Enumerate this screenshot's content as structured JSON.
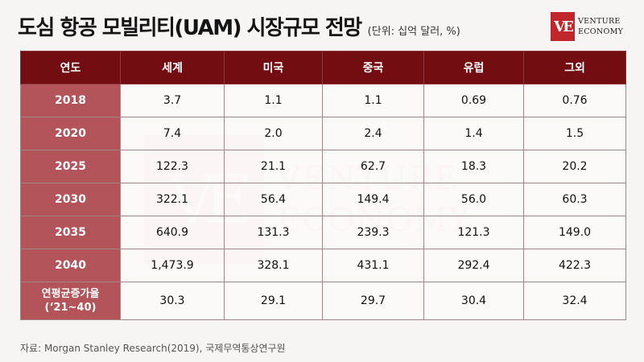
{
  "header": {
    "title": "도심 항공 모빌리티(UAM) 시장규모 전망",
    "unit": "(단위: 십억 달러, %)"
  },
  "logo": {
    "mark": "VE",
    "line1": "VENTURE",
    "line2": "ECONOMY"
  },
  "table": {
    "columns": [
      "연도",
      "세계",
      "미국",
      "중국",
      "유럽",
      "그외"
    ],
    "rows": [
      {
        "year": "2018",
        "values": [
          "3.7",
          "1.1",
          "1.1",
          "0.69",
          "0.76"
        ]
      },
      {
        "year": "2020",
        "values": [
          "7.4",
          "2.0",
          "2.4",
          "1.4",
          "1.5"
        ]
      },
      {
        "year": "2025",
        "values": [
          "122.3",
          "21.1",
          "62.7",
          "18.3",
          "20.2"
        ]
      },
      {
        "year": "2030",
        "values": [
          "322.1",
          "56.4",
          "149.4",
          "56.0",
          "60.3"
        ]
      },
      {
        "year": "2035",
        "values": [
          "640.9",
          "131.3",
          "239.3",
          "121.3",
          "149.0"
        ]
      },
      {
        "year": "2040",
        "values": [
          "1,473.9",
          "328.1",
          "431.1",
          "292.4",
          "422.3"
        ]
      }
    ],
    "cagr": {
      "label_line1": "연평균증가율",
      "label_line2": "(‘21~40)",
      "values": [
        "30.3",
        "29.1",
        "29.7",
        "30.4",
        "32.4"
      ]
    }
  },
  "source": "자료: Morgan Stanley Research(2019), 국제무역통상연구원",
  "colors": {
    "header_bg": "#720d12",
    "year_col_bg": "#b3545a",
    "brand_red": "#c0272d"
  }
}
